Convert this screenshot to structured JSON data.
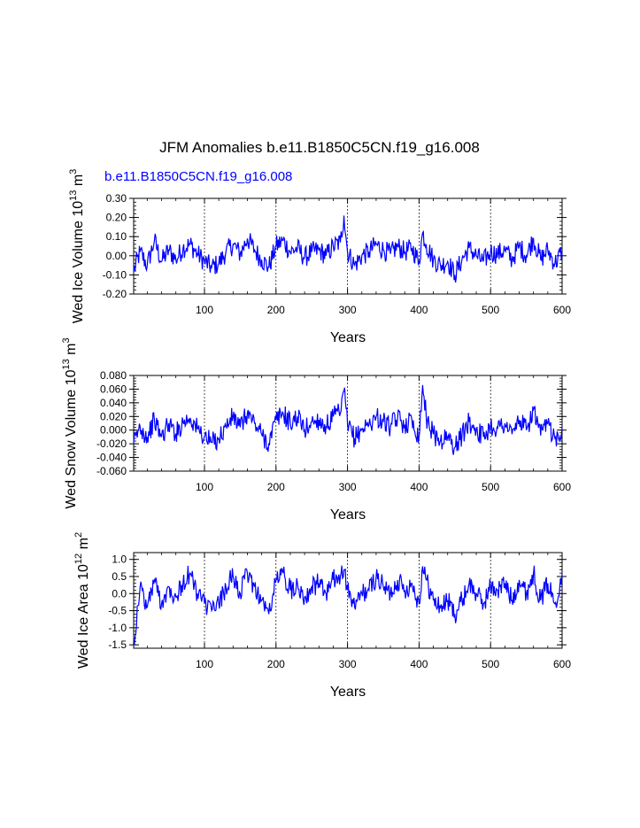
{
  "figure": {
    "title": "JFM Anomalies b.e11.B1850C5CN.f19_g16.008",
    "case_label": "b.e11.B1850C5CN.f19_g16.008",
    "line_color": "#0000ff"
  },
  "chart_data": [
    {
      "type": "line",
      "title": "",
      "xlabel": "Years",
      "ylabel_main": "Wed Ice Volume 10",
      "ylabel_exp1": "13",
      "ylabel_mid": " m",
      "ylabel_exp2": "3",
      "xlim": [
        1,
        600
      ],
      "ylim": [
        -0.2,
        0.3
      ],
      "xticks": [
        100,
        200,
        300,
        400,
        500,
        600
      ],
      "xtick_labels": [
        "100",
        "200",
        "300",
        "400",
        "500",
        "600"
      ],
      "yticks": [
        -0.2,
        -0.1,
        0.0,
        0.1,
        0.2,
        0.3
      ],
      "ytick_labels": [
        "-0.20",
        "-0.10",
        "0.00",
        "0.10",
        "0.20",
        "0.30"
      ],
      "grid_x": [
        100,
        200,
        300,
        400,
        500
      ],
      "series": [
        {
          "name": "b.e11.B1850C5CN.f19_g16.008",
          "x": [
            1,
            10,
            20,
            30,
            40,
            50,
            60,
            70,
            80,
            90,
            100,
            110,
            120,
            130,
            140,
            150,
            160,
            170,
            180,
            190,
            200,
            210,
            220,
            230,
            240,
            250,
            260,
            270,
            280,
            290,
            295,
            300,
            310,
            320,
            330,
            340,
            350,
            360,
            370,
            380,
            390,
            400,
            405,
            410,
            420,
            430,
            440,
            450,
            460,
            470,
            480,
            490,
            500,
            510,
            520,
            530,
            540,
            550,
            560,
            570,
            580,
            590,
            600
          ],
          "values": [
            -0.08,
            0.02,
            -0.05,
            0.08,
            -0.03,
            0.03,
            -0.02,
            0.04,
            0.06,
            0.01,
            -0.03,
            -0.06,
            -0.04,
            0.02,
            0.06,
            0.01,
            0.09,
            0.03,
            -0.02,
            -0.06,
            0.05,
            0.08,
            0.02,
            0.04,
            -0.01,
            0.02,
            0.03,
            0.0,
            0.05,
            0.07,
            0.21,
            0.02,
            -0.05,
            0.0,
            0.02,
            0.06,
            0.03,
            0.01,
            0.05,
            0.02,
            0.04,
            -0.03,
            0.12,
            0.06,
            -0.02,
            -0.05,
            -0.03,
            -0.1,
            -0.02,
            0.04,
            0.0,
            -0.03,
            0.02,
            0.01,
            0.03,
            -0.02,
            0.05,
            0.0,
            0.09,
            -0.02,
            0.03,
            -0.04,
            0.02
          ]
        }
      ]
    },
    {
      "type": "line",
      "title": "",
      "xlabel": "Years",
      "ylabel_main": "Wed Snow Volume 10",
      "ylabel_exp1": "13",
      "ylabel_mid": " m",
      "ylabel_exp2": "3",
      "xlim": [
        1,
        600
      ],
      "ylim": [
        -0.06,
        0.08
      ],
      "xticks": [
        100,
        200,
        300,
        400,
        500,
        600
      ],
      "xtick_labels": [
        "100",
        "200",
        "300",
        "400",
        "500",
        "600"
      ],
      "yticks": [
        -0.06,
        -0.04,
        -0.02,
        0.0,
        0.02,
        0.04,
        0.06,
        0.08
      ],
      "ytick_labels": [
        "-0.060",
        "-0.040",
        "-0.020",
        "0.000",
        "0.020",
        "0.040",
        "0.060",
        "0.080"
      ],
      "grid_x": [
        100,
        200,
        300,
        400,
        500
      ],
      "series": [
        {
          "name": "b.e11.B1850C5CN.f19_g16.008",
          "x": [
            1,
            10,
            20,
            30,
            40,
            50,
            60,
            70,
            80,
            90,
            100,
            110,
            120,
            130,
            140,
            150,
            160,
            170,
            180,
            190,
            200,
            210,
            220,
            230,
            240,
            250,
            260,
            270,
            280,
            290,
            295,
            300,
            310,
            320,
            330,
            340,
            350,
            360,
            370,
            380,
            390,
            400,
            405,
            410,
            420,
            430,
            440,
            450,
            460,
            470,
            480,
            490,
            500,
            510,
            520,
            530,
            540,
            550,
            560,
            570,
            580,
            590,
            600
          ],
          "values": [
            -0.02,
            0.005,
            -0.01,
            0.015,
            -0.01,
            0.01,
            -0.005,
            0.012,
            0.018,
            0.002,
            -0.01,
            -0.018,
            -0.012,
            0.005,
            0.02,
            0.004,
            0.025,
            0.01,
            -0.006,
            -0.02,
            0.015,
            0.025,
            0.01,
            0.02,
            0.0,
            0.012,
            0.015,
            0.005,
            0.02,
            0.025,
            0.058,
            0.008,
            -0.012,
            0.002,
            0.008,
            0.02,
            0.012,
            0.005,
            0.018,
            0.008,
            0.015,
            -0.01,
            0.066,
            0.02,
            -0.006,
            -0.015,
            -0.01,
            -0.025,
            -0.008,
            0.012,
            0.002,
            -0.01,
            0.006,
            0.003,
            0.01,
            -0.006,
            0.015,
            0.0,
            0.03,
            -0.008,
            0.01,
            -0.012,
            0.005
          ]
        }
      ]
    },
    {
      "type": "line",
      "title": "",
      "xlabel": "Years",
      "ylabel_main": "Wed Ice Area 10",
      "ylabel_exp1": "12",
      "ylabel_mid": " m",
      "ylabel_exp2": "2",
      "xlim": [
        1,
        600
      ],
      "ylim": [
        -1.6,
        1.2
      ],
      "xticks": [
        100,
        200,
        300,
        400,
        500,
        600
      ],
      "xtick_labels": [
        "100",
        "200",
        "300",
        "400",
        "500",
        "600"
      ],
      "yticks": [
        -1.5,
        -1.0,
        -0.5,
        0.0,
        0.5,
        1.0
      ],
      "ytick_labels": [
        "-1.5",
        "-1.0",
        "-0.5",
        "0.0",
        "0.5",
        "1.0"
      ],
      "grid_x": [
        100,
        200,
        300,
        400,
        500
      ],
      "series": [
        {
          "name": "b.e11.B1850C5CN.f19_g16.008",
          "x": [
            1,
            10,
            20,
            30,
            40,
            50,
            60,
            70,
            80,
            90,
            100,
            110,
            120,
            130,
            140,
            150,
            160,
            170,
            180,
            190,
            200,
            210,
            220,
            230,
            240,
            250,
            260,
            270,
            280,
            290,
            295,
            300,
            310,
            320,
            330,
            340,
            350,
            360,
            370,
            380,
            390,
            400,
            405,
            410,
            420,
            430,
            440,
            450,
            460,
            470,
            480,
            490,
            500,
            510,
            520,
            530,
            540,
            550,
            560,
            570,
            580,
            590,
            600
          ],
          "values": [
            -1.5,
            0.2,
            -0.4,
            0.4,
            -0.3,
            0.2,
            -0.1,
            0.3,
            0.6,
            0.0,
            -0.3,
            -0.5,
            -0.3,
            0.2,
            0.5,
            0.0,
            0.6,
            0.2,
            -0.2,
            -0.6,
            0.4,
            0.6,
            0.1,
            0.3,
            -0.1,
            0.2,
            0.3,
            0.0,
            0.4,
            0.5,
            0.7,
            0.1,
            -0.4,
            0.0,
            0.1,
            0.5,
            0.2,
            0.0,
            0.4,
            0.1,
            0.3,
            -0.3,
            0.8,
            0.4,
            -0.2,
            -0.4,
            -0.2,
            -0.6,
            -0.2,
            0.3,
            0.0,
            -0.3,
            0.2,
            0.1,
            0.3,
            -0.2,
            0.4,
            0.0,
            0.6,
            -0.2,
            0.3,
            -0.3,
            0.6
          ]
        }
      ]
    }
  ]
}
